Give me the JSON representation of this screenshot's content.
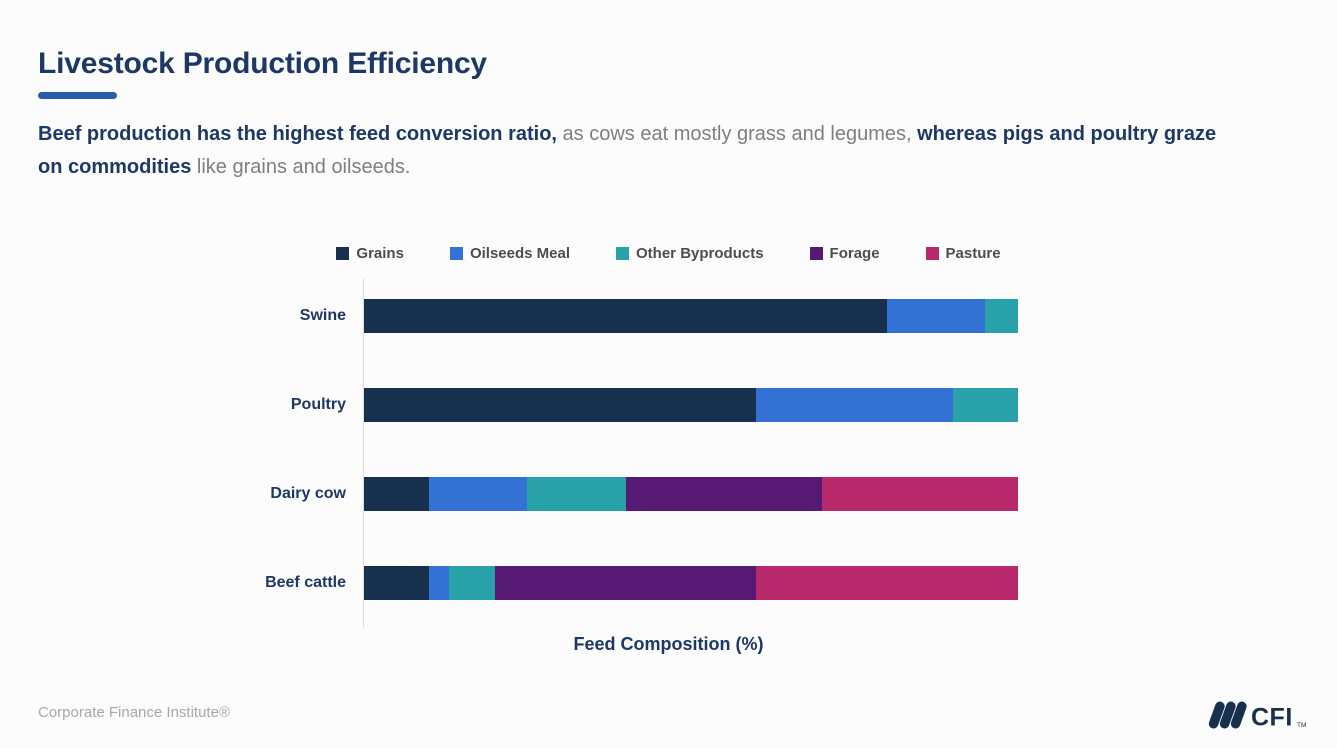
{
  "header": {
    "title": "Livestock Production Efficiency",
    "subtitle_segments": [
      {
        "text": "Beef production has the highest feed conversion ratio,",
        "emphasis": true
      },
      {
        "text": " as cows eat mostly grass and legumes, ",
        "emphasis": false
      },
      {
        "text": "whereas pigs and poultry graze on commodities",
        "emphasis": true
      },
      {
        "text": " like grains and oilseeds.",
        "emphasis": false
      }
    ]
  },
  "chart_data": {
    "type": "bar",
    "orientation": "horizontal",
    "stacked": true,
    "categories": [
      "Swine",
      "Poultry",
      "Dairy cow",
      "Beef cattle"
    ],
    "series": [
      {
        "name": "Grains",
        "color": "#16304e",
        "values": [
          80,
          60,
          10,
          10
        ]
      },
      {
        "name": "Oilseeds Meal",
        "color": "#3371d4",
        "values": [
          15,
          30,
          15,
          3
        ]
      },
      {
        "name": "Other Byproducts",
        "color": "#28a2a8",
        "values": [
          5,
          10,
          15,
          7
        ]
      },
      {
        "name": "Forage",
        "color": "#561a75",
        "values": [
          0,
          0,
          30,
          40
        ]
      },
      {
        "name": "Pasture",
        "color": "#b7296a",
        "values": [
          0,
          0,
          30,
          40
        ]
      }
    ],
    "xlabel": "Feed Composition (%)",
    "xlim": [
      0,
      100
    ],
    "legend_position": "top",
    "grid": false
  },
  "footer": {
    "attribution": "Corporate Finance Institute®",
    "logo_text": "CFI",
    "logo_tm": "TM"
  },
  "colors": {
    "accent_rule": "#2b5cad",
    "navy_text": "#1d3865",
    "muted_text": "#7f7f7f",
    "legend_text": "#4d4d4d",
    "footer_text": "#a8a8a8",
    "axis_line": "#dcdcdc",
    "background": "#fcfcfc"
  }
}
